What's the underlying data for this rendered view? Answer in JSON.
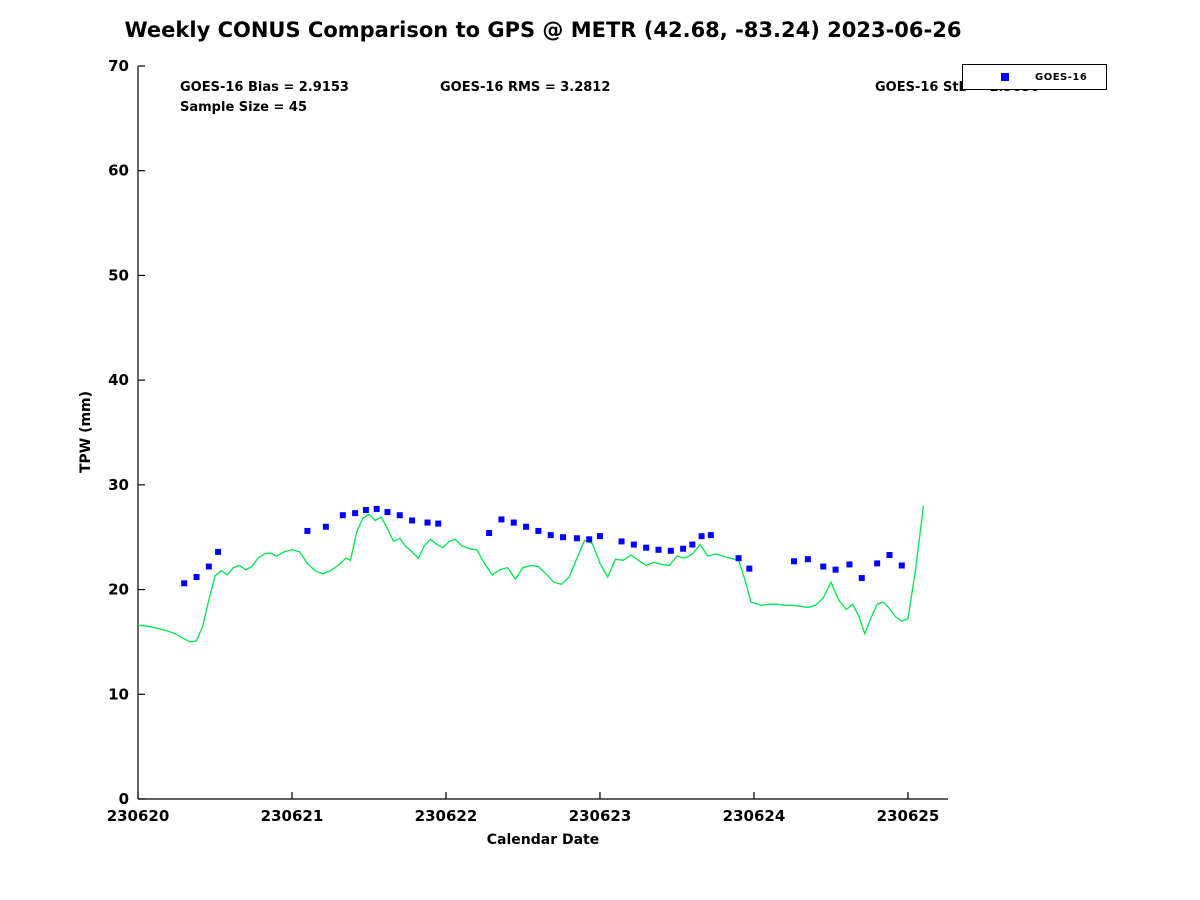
{
  "title": "Weekly CONUS Comparison to GPS @ METR (42.68, -83.24) 2023-06-26",
  "annotations": {
    "bias": "GOES-16 Bias = 2.9153",
    "rms": "GOES-16 RMS = 3.2812",
    "std": "GOES-16 StD = 1.5056",
    "sample_size": "Sample Size = 45"
  },
  "legend": {
    "items": [
      {
        "label": "GOES-16",
        "marker": "filled-square",
        "marker_color": "#0000ff"
      }
    ]
  },
  "chart_data": {
    "type": "line",
    "title": "Weekly CONUS Comparison to GPS @ METR (42.68, -83.24) 2023-06-26",
    "xlabel": "Calendar Date",
    "ylabel": "TPW (mm)",
    "xlim": [
      230620,
      230625.26
    ],
    "ylim": [
      0,
      70
    ],
    "xticks": [
      230620,
      230621,
      230622,
      230623,
      230624,
      230625
    ],
    "yticks": [
      0,
      10,
      20,
      30,
      40,
      50,
      60,
      70
    ],
    "x_base": 230620,
    "series": [
      {
        "name": "GPS",
        "type": "line",
        "color": "#00e550",
        "x_offset_days": [
          0.0,
          0.06,
          0.12,
          0.18,
          0.24,
          0.3,
          0.34,
          0.38,
          0.42,
          0.46,
          0.5,
          0.54,
          0.58,
          0.62,
          0.66,
          0.7,
          0.74,
          0.78,
          0.82,
          0.86,
          0.9,
          0.95,
          1.0,
          1.05,
          1.1,
          1.15,
          1.2,
          1.25,
          1.3,
          1.35,
          1.38,
          1.42,
          1.46,
          1.5,
          1.54,
          1.58,
          1.62,
          1.66,
          1.7,
          1.74,
          1.78,
          1.82,
          1.86,
          1.9,
          1.94,
          1.98,
          2.02,
          2.06,
          2.1,
          2.15,
          2.2,
          2.25,
          2.3,
          2.35,
          2.4,
          2.45,
          2.5,
          2.55,
          2.6,
          2.65,
          2.7,
          2.75,
          2.8,
          2.85,
          2.9,
          2.95,
          3.0,
          3.05,
          3.1,
          3.15,
          3.2,
          3.25,
          3.3,
          3.35,
          3.4,
          3.45,
          3.5,
          3.55,
          3.6,
          3.65,
          3.7,
          3.75,
          3.8,
          3.85,
          3.9,
          3.94,
          3.98,
          4.05,
          4.1,
          4.15,
          4.2,
          4.25,
          4.3,
          4.35,
          4.4,
          4.45,
          4.5,
          4.55,
          4.6,
          4.64,
          4.68,
          4.72,
          4.76,
          4.8,
          4.84,
          4.88,
          4.92,
          4.96,
          5.0,
          5.05,
          5.1
        ],
        "y": [
          16.6,
          16.5,
          16.3,
          16.1,
          15.8,
          15.3,
          15.0,
          15.1,
          16.5,
          19.0,
          21.3,
          21.8,
          21.4,
          22.1,
          22.3,
          21.9,
          22.2,
          23.0,
          23.4,
          23.5,
          23.2,
          23.6,
          23.8,
          23.6,
          22.5,
          21.8,
          21.5,
          21.8,
          22.3,
          23.0,
          22.8,
          25.5,
          26.8,
          27.2,
          26.6,
          26.9,
          25.8,
          24.6,
          24.9,
          24.1,
          23.6,
          23.0,
          24.2,
          24.8,
          24.3,
          24.0,
          24.6,
          24.8,
          24.2,
          23.9,
          23.8,
          22.5,
          21.4,
          21.9,
          22.1,
          21.0,
          22.1,
          22.3,
          22.2,
          21.5,
          20.7,
          20.5,
          21.2,
          23.0,
          24.7,
          24.4,
          22.5,
          21.2,
          22.9,
          22.8,
          23.3,
          22.8,
          22.3,
          22.6,
          22.4,
          22.3,
          23.2,
          23.0,
          23.4,
          24.3,
          23.2,
          23.4,
          23.2,
          23.0,
          22.8,
          21.0,
          18.8,
          18.5,
          18.6,
          18.6,
          18.5,
          18.5,
          18.4,
          18.3,
          18.5,
          19.2,
          20.7,
          19.0,
          18.1,
          18.6,
          17.5,
          15.8,
          17.3,
          18.6,
          18.8,
          18.2,
          17.4,
          17.0,
          17.2,
          22.0,
          28.0
        ]
      },
      {
        "name": "GOES-16",
        "type": "scatter",
        "color": "#0000ff",
        "x_offset_days": [
          0.3,
          0.38,
          0.46,
          0.52,
          1.1,
          1.22,
          1.33,
          1.41,
          1.48,
          1.55,
          1.62,
          1.7,
          1.78,
          1.88,
          1.95,
          2.28,
          2.36,
          2.44,
          2.52,
          2.6,
          2.68,
          2.76,
          2.85,
          2.93,
          3.0,
          3.14,
          3.22,
          3.3,
          3.38,
          3.46,
          3.54,
          3.6,
          3.66,
          3.72,
          3.9,
          3.97,
          4.26,
          4.35,
          4.45,
          4.53,
          4.62,
          4.7,
          4.8,
          4.88,
          4.96
        ],
        "y": [
          20.6,
          21.2,
          22.2,
          23.6,
          25.6,
          26.0,
          27.1,
          27.3,
          27.6,
          27.7,
          27.4,
          27.1,
          26.6,
          26.4,
          26.3,
          25.4,
          26.7,
          26.4,
          26.0,
          25.6,
          25.2,
          25.0,
          24.9,
          24.8,
          25.1,
          24.6,
          24.3,
          24.0,
          23.8,
          23.7,
          23.9,
          24.3,
          25.1,
          25.2,
          23.0,
          22.0,
          22.7,
          22.9,
          22.2,
          21.9,
          22.4,
          21.1,
          22.5,
          23.3,
          22.3
        ]
      }
    ]
  }
}
